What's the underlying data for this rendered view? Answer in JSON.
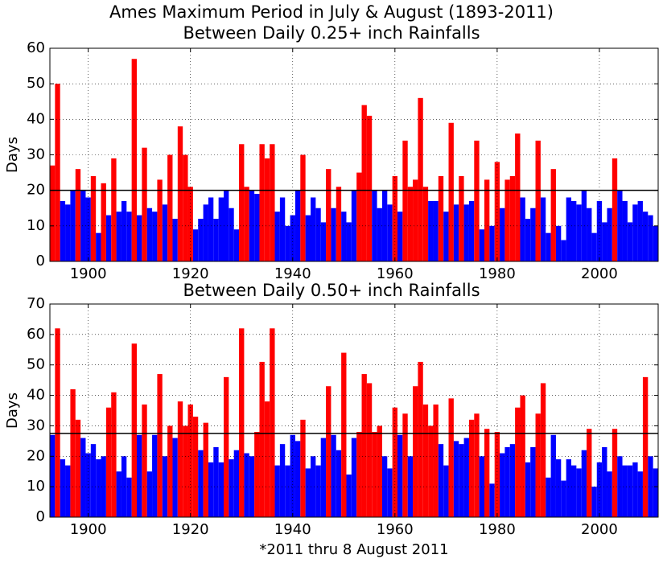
{
  "title": "Ames Maximum Period in July & August (1893-2011)",
  "chart_data": [
    {
      "type": "bar",
      "title": "Between Daily 0.25+ inch Rainfalls",
      "ylabel": "Days",
      "x": [
        1893,
        1894,
        1895,
        1896,
        1897,
        1898,
        1899,
        1900,
        1901,
        1902,
        1903,
        1904,
        1905,
        1906,
        1907,
        1908,
        1909,
        1910,
        1911,
        1912,
        1913,
        1914,
        1915,
        1916,
        1917,
        1918,
        1919,
        1920,
        1921,
        1922,
        1923,
        1924,
        1925,
        1926,
        1927,
        1928,
        1929,
        1930,
        1931,
        1932,
        1933,
        1934,
        1935,
        1936,
        1937,
        1938,
        1939,
        1940,
        1941,
        1942,
        1943,
        1944,
        1945,
        1946,
        1947,
        1948,
        1949,
        1950,
        1951,
        1952,
        1953,
        1954,
        1955,
        1956,
        1957,
        1958,
        1959,
        1960,
        1961,
        1962,
        1963,
        1964,
        1965,
        1966,
        1967,
        1968,
        1969,
        1970,
        1971,
        1972,
        1973,
        1974,
        1975,
        1976,
        1977,
        1978,
        1979,
        1980,
        1981,
        1982,
        1983,
        1984,
        1985,
        1986,
        1987,
        1988,
        1989,
        1990,
        1991,
        1992,
        1993,
        1994,
        1995,
        1996,
        1997,
        1998,
        1999,
        2000,
        2001,
        2002,
        2003,
        2004,
        2005,
        2006,
        2007,
        2008,
        2009,
        2010,
        2011
      ],
      "values": [
        27,
        50,
        17,
        16,
        20,
        26,
        20,
        18,
        24,
        8,
        22,
        13,
        29,
        14,
        17,
        14,
        57,
        13,
        32,
        15,
        14,
        23,
        16,
        30,
        12,
        38,
        30,
        21,
        9,
        12,
        16,
        18,
        12,
        18,
        20,
        15,
        9,
        33,
        21,
        20,
        19,
        33,
        29,
        33,
        14,
        18,
        10,
        13,
        20,
        30,
        13,
        18,
        15,
        11,
        26,
        15,
        21,
        14,
        11,
        20,
        25,
        44,
        41,
        20,
        15,
        20,
        16,
        24,
        14,
        34,
        21,
        23,
        46,
        21,
        17,
        17,
        24,
        14,
        39,
        16,
        24,
        16,
        17,
        34,
        9,
        23,
        10,
        28,
        15,
        23,
        24,
        36,
        18,
        12,
        15,
        34,
        18,
        8,
        26,
        10,
        6,
        18,
        17,
        16,
        20,
        15,
        8,
        17,
        11,
        15,
        29,
        20,
        17,
        11,
        16,
        17,
        14,
        13,
        10
      ],
      "threshold": 20,
      "above_color": "#ff0000",
      "below_color": "#0000ff",
      "xlim": [
        1892.5,
        2011.5
      ],
      "xticks": [
        1900,
        1920,
        1940,
        1960,
        1980,
        2000
      ],
      "ylim": [
        0,
        60
      ],
      "yticks": [
        0,
        10,
        20,
        30,
        40,
        50,
        60
      ],
      "grid": true
    },
    {
      "type": "bar",
      "title": "Between Daily 0.50+ inch Rainfalls",
      "ylabel": "Days",
      "xlabel": "*2011 thru 8 August 2011",
      "x": [
        1893,
        1894,
        1895,
        1896,
        1897,
        1898,
        1899,
        1900,
        1901,
        1902,
        1903,
        1904,
        1905,
        1906,
        1907,
        1908,
        1909,
        1910,
        1911,
        1912,
        1913,
        1914,
        1915,
        1916,
        1917,
        1918,
        1919,
        1920,
        1921,
        1922,
        1923,
        1924,
        1925,
        1926,
        1927,
        1928,
        1929,
        1930,
        1931,
        1932,
        1933,
        1934,
        1935,
        1936,
        1937,
        1938,
        1939,
        1940,
        1941,
        1942,
        1943,
        1944,
        1945,
        1946,
        1947,
        1948,
        1949,
        1950,
        1951,
        1952,
        1953,
        1954,
        1955,
        1956,
        1957,
        1958,
        1959,
        1960,
        1961,
        1962,
        1963,
        1964,
        1965,
        1966,
        1967,
        1968,
        1969,
        1970,
        1971,
        1972,
        1973,
        1974,
        1975,
        1976,
        1977,
        1978,
        1979,
        1980,
        1981,
        1982,
        1983,
        1984,
        1985,
        1986,
        1987,
        1988,
        1989,
        1990,
        1991,
        1992,
        1993,
        1994,
        1995,
        1996,
        1997,
        1998,
        1999,
        2000,
        2001,
        2002,
        2003,
        2004,
        2005,
        2006,
        2007,
        2008,
        2009,
        2010,
        2011
      ],
      "values": [
        27,
        62,
        19,
        17,
        42,
        32,
        26,
        21,
        24,
        19,
        20,
        36,
        41,
        15,
        20,
        13,
        57,
        27,
        37,
        15,
        27,
        47,
        20,
        30,
        26,
        38,
        30,
        37,
        33,
        22,
        31,
        18,
        23,
        18,
        46,
        19,
        22,
        62,
        21,
        20,
        28,
        51,
        38,
        62,
        17,
        24,
        17,
        27,
        25,
        32,
        16,
        20,
        17,
        26,
        43,
        27,
        22,
        54,
        14,
        26,
        28,
        47,
        44,
        28,
        30,
        20,
        16,
        36,
        27,
        34,
        20,
        43,
        51,
        37,
        30,
        37,
        24,
        17,
        39,
        25,
        24,
        26,
        32,
        34,
        20,
        29,
        11,
        28,
        21,
        23,
        24,
        36,
        40,
        18,
        23,
        34,
        44,
        13,
        27,
        19,
        12,
        19,
        17,
        16,
        22,
        29,
        10,
        18,
        23,
        15,
        29,
        20,
        17,
        17,
        18,
        15,
        46,
        20,
        16
      ],
      "threshold": 27.5,
      "above_color": "#ff0000",
      "below_color": "#0000ff",
      "xlim": [
        1892.5,
        2011.5
      ],
      "xticks": [
        1900,
        1920,
        1940,
        1960,
        1980,
        2000
      ],
      "ylim": [
        0,
        70
      ],
      "yticks": [
        0,
        10,
        20,
        30,
        40,
        50,
        60,
        70
      ],
      "grid": true
    }
  ]
}
